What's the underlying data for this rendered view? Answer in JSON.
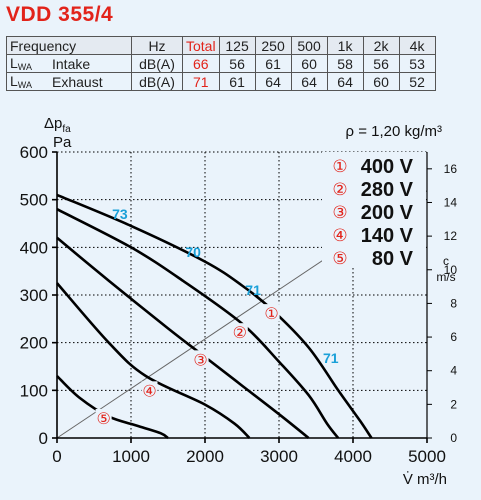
{
  "model": "VDD 355/4",
  "sound_table": {
    "header": [
      "Frequency",
      "Hz",
      "Total",
      "125",
      "250",
      "500",
      "1k",
      "2k",
      "4k"
    ],
    "rows": [
      {
        "label": "L",
        "sub": "WA",
        "type": "Intake",
        "unit": "dB(A)",
        "total": "66",
        "values": [
          "56",
          "61",
          "60",
          "58",
          "56",
          "53"
        ]
      },
      {
        "label": "L",
        "sub": "WA",
        "type": "Exhaust",
        "unit": "dB(A)",
        "total": "71",
        "values": [
          "61",
          "64",
          "64",
          "64",
          "60",
          "52"
        ]
      }
    ]
  },
  "colors": {
    "accent_red": "#e2231a",
    "efficiency_blue": "#1aa0d8",
    "curve": "#000000",
    "velocity_line": "#666666",
    "grid": "#000000",
    "background": "#eaf3fb"
  },
  "chart_data": {
    "type": "line",
    "xlabel": "V̇ m³/h",
    "ylabel_symbol": "Δp",
    "ylabel_sub": "fa",
    "ylabel_unit": "Pa",
    "density_label": "ρ = 1,20 kg/m³",
    "xlim": [
      0,
      5000
    ],
    "ylim": [
      0,
      600
    ],
    "xticks": [
      0,
      1000,
      2000,
      3000,
      4000,
      5000
    ],
    "yticks": [
      0,
      100,
      200,
      300,
      400,
      500,
      600
    ],
    "grid": true,
    "right_axis": {
      "label_top": "c",
      "label_unit": "m/s",
      "ticks": [
        0,
        2,
        4,
        6,
        8,
        10,
        12,
        14,
        16
      ],
      "max": 17
    },
    "series": [
      {
        "marker": "①",
        "name": "400 V",
        "points": [
          [
            0,
            510
          ],
          [
            1000,
            445
          ],
          [
            2000,
            370
          ],
          [
            2500,
            320
          ],
          [
            2900,
            270
          ],
          [
            3400,
            190
          ],
          [
            3800,
            100
          ],
          [
            4100,
            35
          ],
          [
            4250,
            0
          ]
        ]
      },
      {
        "marker": "②",
        "name": "280 V",
        "points": [
          [
            0,
            480
          ],
          [
            1000,
            400
          ],
          [
            1700,
            330
          ],
          [
            2500,
            240
          ],
          [
            3000,
            160
          ],
          [
            3400,
            90
          ],
          [
            3650,
            30
          ],
          [
            3800,
            0
          ]
        ]
      },
      {
        "marker": "③",
        "name": "200 V",
        "points": [
          [
            0,
            420
          ],
          [
            700,
            330
          ],
          [
            1500,
            230
          ],
          [
            2000,
            170
          ],
          [
            2500,
            110
          ],
          [
            3000,
            50
          ],
          [
            3400,
            0
          ]
        ]
      },
      {
        "marker": "④",
        "name": "140 V",
        "points": [
          [
            0,
            325
          ],
          [
            700,
            200
          ],
          [
            1200,
            130
          ],
          [
            2000,
            70
          ],
          [
            2400,
            30
          ],
          [
            2600,
            0
          ]
        ]
      },
      {
        "marker": "⑤",
        "name": "80 V",
        "points": [
          [
            0,
            130
          ],
          [
            300,
            85
          ],
          [
            700,
            45
          ],
          [
            1100,
            25
          ],
          [
            1400,
            10
          ],
          [
            1500,
            0
          ]
        ]
      }
    ],
    "marker_labels": [
      {
        "text": "①",
        "x": 2900,
        "y": 262
      },
      {
        "text": "②",
        "x": 2470,
        "y": 222
      },
      {
        "text": "③",
        "x": 1940,
        "y": 165
      },
      {
        "text": "④",
        "x": 1250,
        "y": 100
      },
      {
        "text": "⑤",
        "x": 630,
        "y": 42
      }
    ],
    "efficiency_labels": [
      {
        "text": "73",
        "x": 850,
        "y": 470
      },
      {
        "text": "70",
        "x": 1840,
        "y": 390
      },
      {
        "text": "71",
        "x": 2650,
        "y": 310
      },
      {
        "text": "71",
        "x": 3700,
        "y": 168
      }
    ],
    "velocity_line": {
      "points": [
        [
          0,
          0
        ],
        [
          5000,
          14.7
        ]
      ]
    },
    "legend": {
      "placement": "top-right",
      "items": [
        {
          "marker": "①",
          "label": "400 V"
        },
        {
          "marker": "②",
          "label": "280 V"
        },
        {
          "marker": "③",
          "label": "200 V"
        },
        {
          "marker": "④",
          "label": "140 V"
        },
        {
          "marker": "⑤",
          "label": "80 V"
        }
      ]
    }
  }
}
